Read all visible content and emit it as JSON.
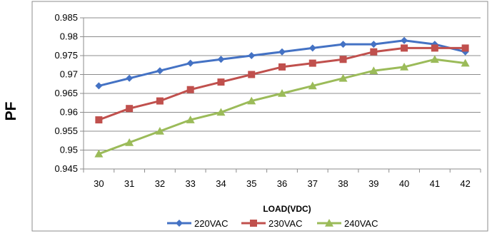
{
  "chart_data": {
    "type": "line",
    "xlabel": "LOAD(VDC)",
    "ylabel": "PF",
    "x": [
      30,
      31,
      32,
      33,
      34,
      35,
      36,
      37,
      38,
      39,
      40,
      41,
      42
    ],
    "ylim": [
      0.945,
      0.985
    ],
    "yticks": [
      "0.945",
      "0.95",
      "0.955",
      "0.96",
      "0.965",
      "0.97",
      "0.975",
      "0.98",
      "0.985"
    ],
    "grid": true,
    "legend_position": "bottom",
    "series": [
      {
        "name": "220VAC",
        "color": "#4472C4",
        "marker": "diamond",
        "values": [
          0.967,
          0.969,
          0.971,
          0.973,
          0.974,
          0.975,
          0.976,
          0.977,
          0.978,
          0.978,
          0.979,
          0.978,
          0.976
        ]
      },
      {
        "name": "230VAC",
        "color": "#C0504D",
        "marker": "square",
        "values": [
          0.958,
          0.961,
          0.963,
          0.966,
          0.968,
          0.97,
          0.972,
          0.973,
          0.974,
          0.976,
          0.977,
          0.977,
          0.977
        ]
      },
      {
        "name": "240VAC",
        "color": "#9BBB59",
        "marker": "triangle",
        "values": [
          0.949,
          0.952,
          0.955,
          0.958,
          0.96,
          0.963,
          0.965,
          0.967,
          0.969,
          0.971,
          0.972,
          0.974,
          0.973
        ]
      }
    ]
  }
}
